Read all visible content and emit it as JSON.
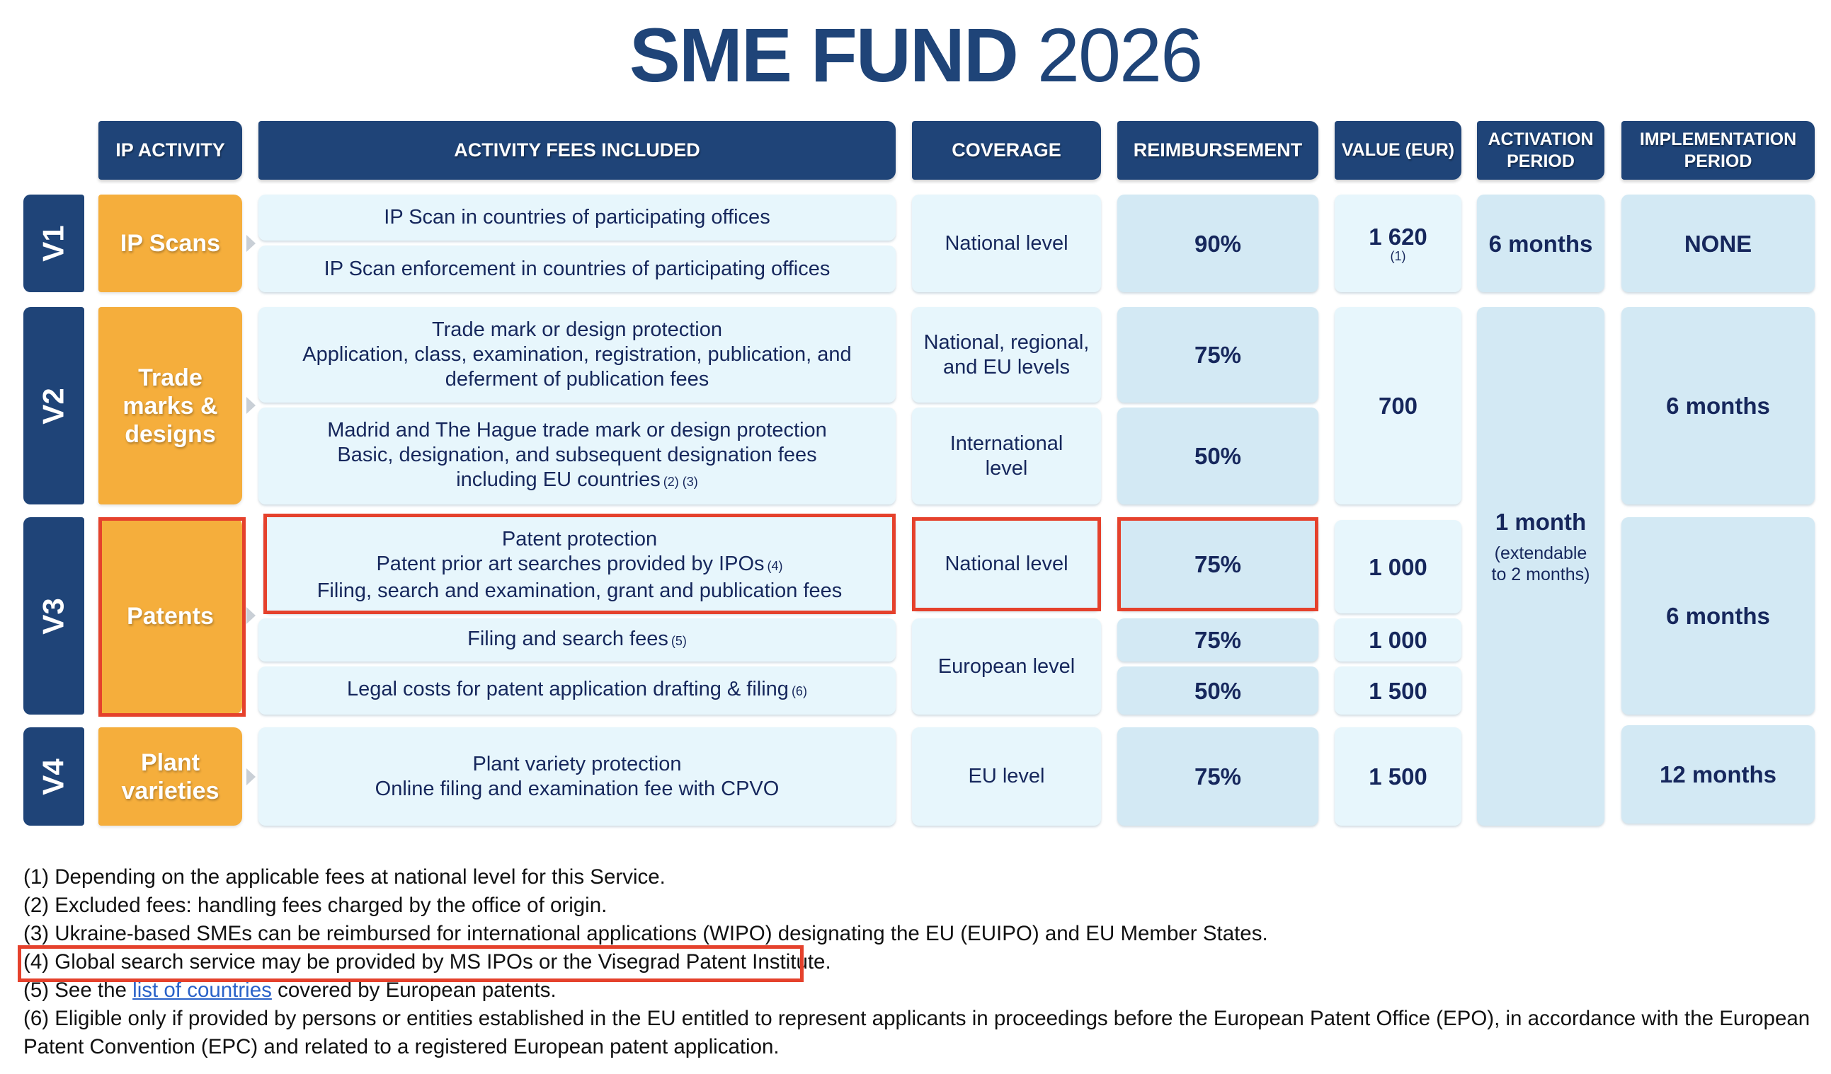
{
  "title": {
    "bold": "SME FUND",
    "year": "2026"
  },
  "headers": {
    "ip_activity": "IP ACTIVITY",
    "fees": "ACTIVITY FEES INCLUDED",
    "coverage": "COVERAGE",
    "reimbursement": "REIMBURSEMENT",
    "value": "VALUE (EUR)",
    "activation": "ACTIVATION PERIOD",
    "implementation": "IMPLEMENTATION PERIOD"
  },
  "v1": {
    "label": "V1",
    "activity": "IP Scans",
    "fees": [
      "IP Scan in countries of participating offices",
      "IP Scan enforcement in countries of participating offices"
    ],
    "coverage": "National level",
    "reimbursement": "90%",
    "value": "1 620",
    "value_note": "(1)",
    "activation": "6 months",
    "implementation": "NONE"
  },
  "v2": {
    "label": "V2",
    "activity": "Trade marks & designs",
    "fees": [
      {
        "l1": "Trade mark or design protection",
        "l2": "Application, class, examination, registration, publication, and",
        "l3": "deferment of publication fees"
      },
      {
        "l1": "Madrid and The Hague trade mark or design protection",
        "l2": "Basic, designation, and subsequent designation fees",
        "l3": "including EU countries",
        "note": "(2) (3)"
      }
    ],
    "coverage": [
      "National, regional, and EU levels",
      "International level"
    ],
    "reimbursement": [
      "75%",
      "50%"
    ],
    "value": "700",
    "implementation": "6 months"
  },
  "v3": {
    "label": "V3",
    "activity": "Patents",
    "fees": [
      {
        "l1": "Patent protection",
        "l2": "Patent prior art searches provided by IPOs",
        "l2_note": "(4)",
        "l3": "Filing, search and examination, grant and publication fees"
      },
      {
        "l1": "Filing and search fees",
        "note": "(5)"
      },
      {
        "l1": "Legal costs for patent application drafting & filing",
        "note": "(6)"
      }
    ],
    "coverage": [
      "National level",
      "European level"
    ],
    "reimbursement": [
      "75%",
      "75%",
      "50%"
    ],
    "value": [
      "1 000",
      "1 000",
      "1 500"
    ],
    "implementation": "6 months"
  },
  "v4": {
    "label": "V4",
    "activity": "Plant varieties",
    "fees": {
      "l1": "Plant variety protection",
      "l2": "Online filing and examination fee with CPVO"
    },
    "coverage": "EU level",
    "reimbursement": "75%",
    "value": "1 500",
    "implementation": "12 months"
  },
  "activation_shared": {
    "main": "1 month",
    "sub": "(extendable to 2 months)"
  },
  "footnotes": {
    "f1": "(1) Depending on the applicable fees at national level for this Service.",
    "f2": "(2) Excluded fees: handling fees charged by the office of origin.",
    "f3": "(3) Ukraine-based SMEs can be reimbursed for international applications (WIPO) designating the EU (EUIPO) and EU Member States.",
    "f4": "(4) Global search service may be provided by MS IPOs or the Visegrad Patent Institute.",
    "f5_prefix": "(5) See the ",
    "f5_link": "list of countries",
    "f5_suffix": " covered by European patents.",
    "f6": "(6) Eligible only if provided by persons or entities established in the EU entitled to represent applicants in proceedings before the European Patent Office (EPO), in accordance with the European Patent Convention (EPC) and related to a registered European patent application."
  },
  "colors": {
    "navy": "#1f4478",
    "orange": "#f5ae3c",
    "cell_light": "#e7f6fc",
    "cell_dark": "#d3e9f4",
    "highlight_red": "#e5412c",
    "link": "#2a62c9"
  }
}
